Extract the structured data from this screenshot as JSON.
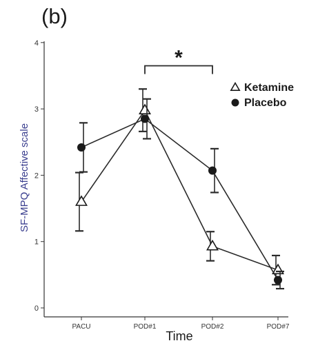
{
  "panel_label": "(b)",
  "chart_data": {
    "type": "line",
    "title": "",
    "xlabel": "Time",
    "ylabel": "SF-MPQ Affective scale",
    "categories": [
      "PACU",
      "POD#1",
      "POD#2",
      "POD#7"
    ],
    "ylim": [
      0,
      4.2
    ],
    "yticks": [
      "0",
      "1",
      "2",
      "3",
      "4"
    ],
    "grid": false,
    "legend_position": "top-right",
    "series": [
      {
        "name": "Ketamine",
        "marker": "open-triangle",
        "values": [
          1.6,
          2.98,
          0.93,
          0.57
        ],
        "error": [
          0.44,
          0.32,
          0.22,
          0.22
        ]
      },
      {
        "name": "Placebo",
        "marker": "filled-circle",
        "values": [
          2.42,
          2.85,
          2.07,
          0.42
        ],
        "error": [
          0.37,
          0.3,
          0.33,
          0.13
        ]
      }
    ],
    "annotations": [
      {
        "text": "*",
        "type": "significance-bracket",
        "from": "POD#1",
        "to": "POD#2",
        "y": 3.65
      }
    ],
    "colors": {
      "lines": "#2a2a2a",
      "axis": "#333333",
      "ylabel": "#3b3f8f"
    }
  }
}
